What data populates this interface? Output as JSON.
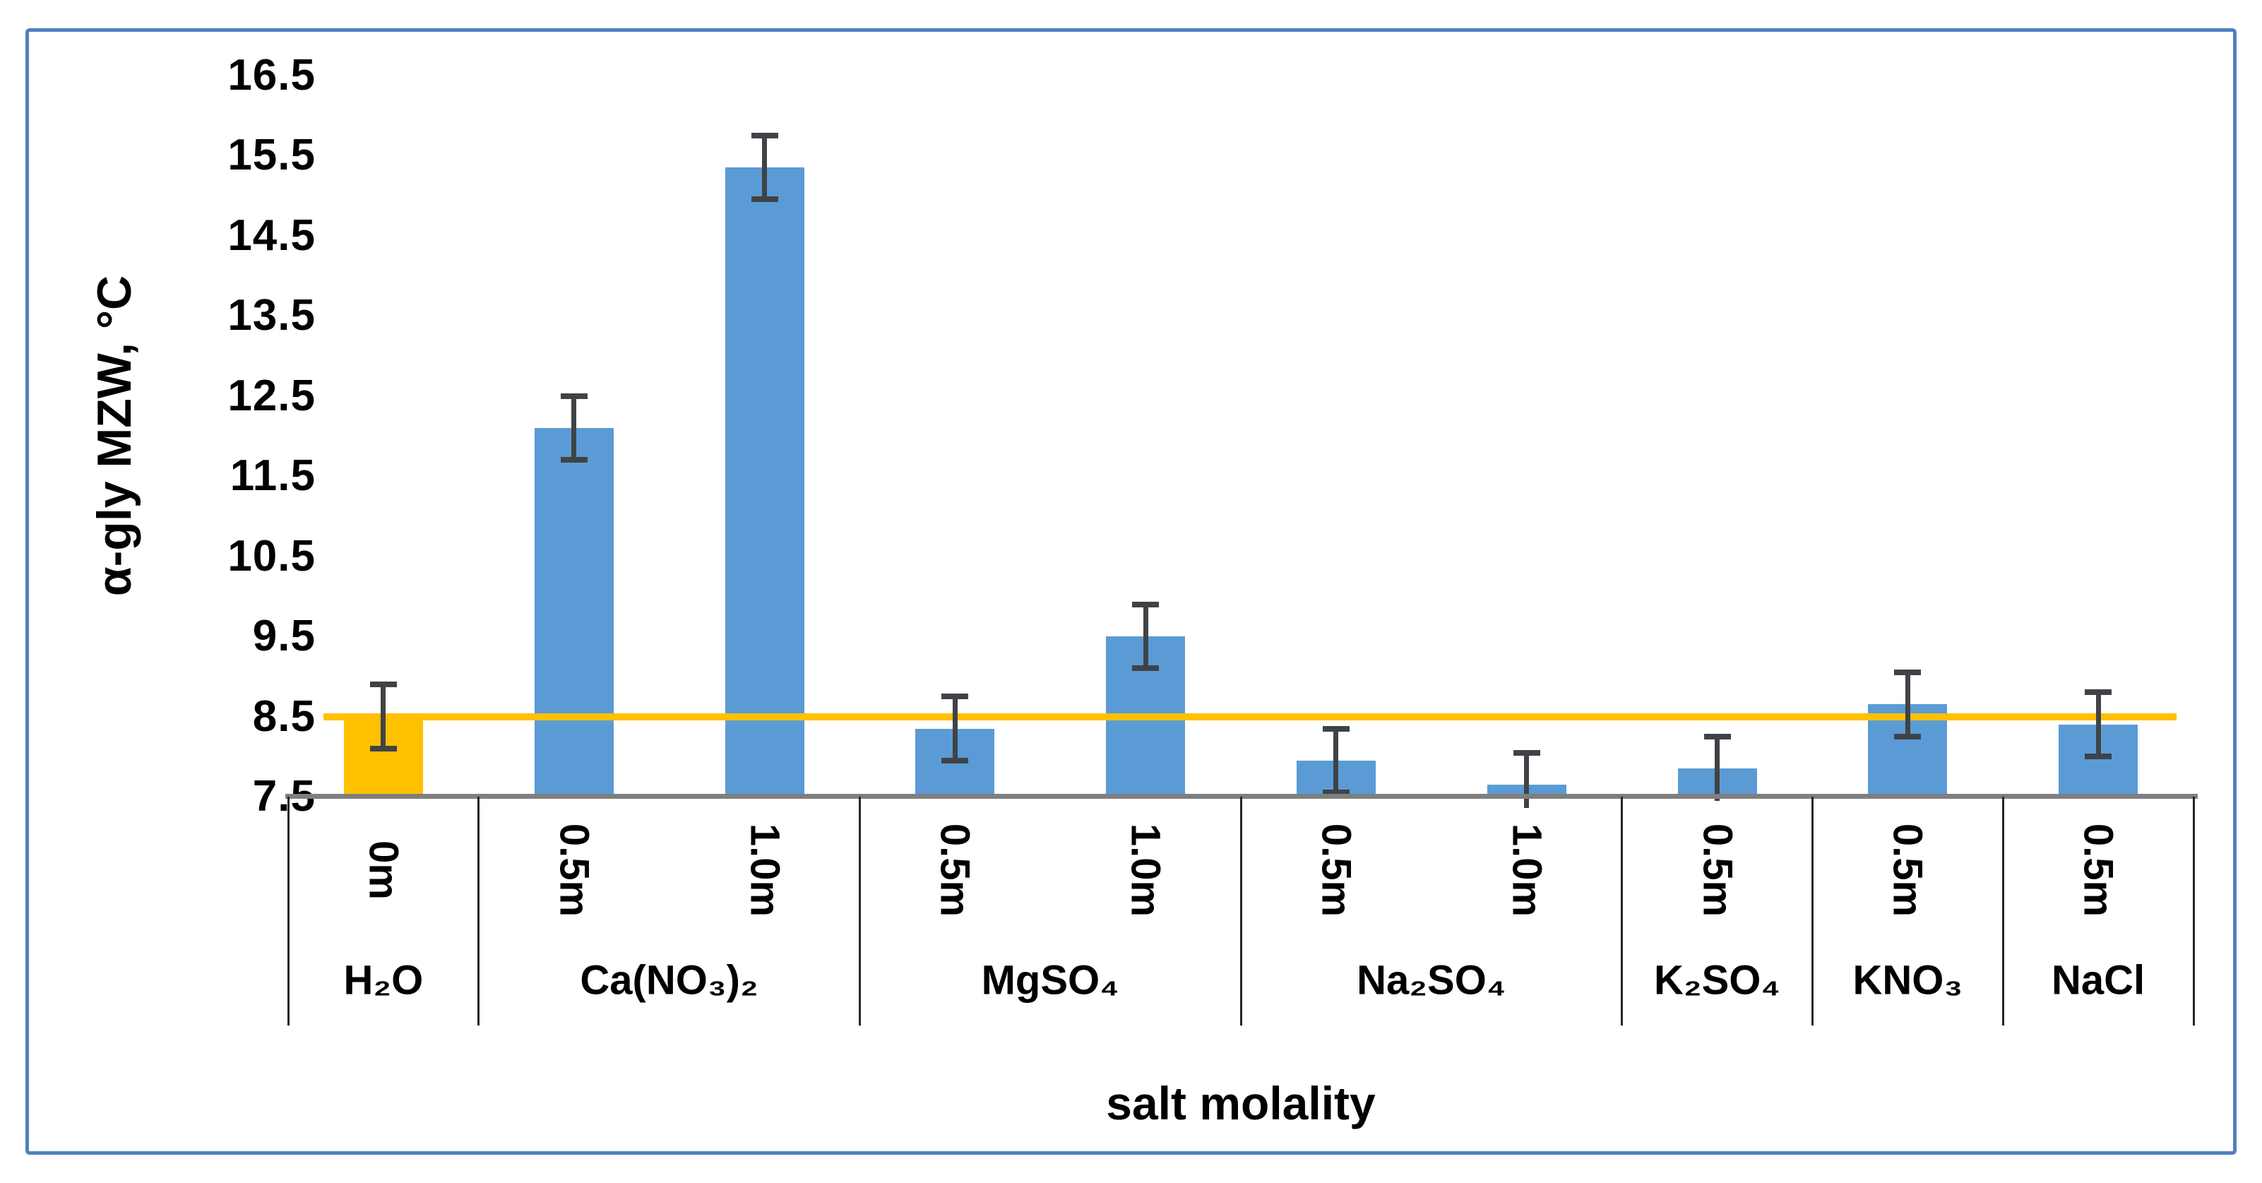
{
  "figure": {
    "background": "#FFFFFF",
    "border_color": "#4E81BD"
  },
  "colors": {
    "bar": "#5B9BD5",
    "highlight": "#FFC000",
    "reference_line": "#FFC000",
    "error_bar": "#3F4347",
    "axis_line": "#7F7F7F",
    "divider": "#262626",
    "text": "#000000"
  },
  "chart_data": {
    "type": "bar",
    "title": "",
    "ylabel": "α-gly MZW, °C",
    "xlabel": "salt molality",
    "ylim": [
      7.5,
      16.5
    ],
    "ytick_step": 1.0,
    "yticks": [
      7.5,
      8.5,
      9.5,
      10.5,
      11.5,
      12.5,
      13.5,
      14.5,
      15.5,
      16.5
    ],
    "grid": false,
    "legend": null,
    "reference_line": {
      "value": 8.5,
      "color": "#FFC000",
      "meaning": "water control level"
    },
    "error_bars": "plus-minus, capped",
    "groups": [
      {
        "label": "H₂O",
        "bars": [
          {
            "molality": "0m",
            "value": 8.5,
            "error": 0.4,
            "color": "#FFC000"
          }
        ]
      },
      {
        "label": "Ca(NO₃)₂",
        "bars": [
          {
            "molality": "0.5m",
            "value": 12.1,
            "error": 0.4,
            "color": "#5B9BD5"
          },
          {
            "molality": "1.0m",
            "value": 15.35,
            "error": 0.4,
            "color": "#5B9BD5"
          }
        ]
      },
      {
        "label": "MgSO₄",
        "bars": [
          {
            "molality": "0.5m",
            "value": 8.35,
            "error": 0.4,
            "color": "#5B9BD5"
          },
          {
            "molality": "1.0m",
            "value": 9.5,
            "error": 0.4,
            "color": "#5B9BD5"
          }
        ]
      },
      {
        "label": "Na₂SO₄",
        "bars": [
          {
            "molality": "0.5m",
            "value": 7.95,
            "error": 0.4,
            "color": "#5B9BD5"
          },
          {
            "molality": "1.0m",
            "value": 7.65,
            "error": 0.4,
            "color": "#5B9BD5"
          }
        ]
      },
      {
        "label": "K₂SO₄",
        "bars": [
          {
            "molality": "0.5m",
            "value": 7.85,
            "error": 0.4,
            "color": "#5B9BD5"
          }
        ]
      },
      {
        "label": "KNO₃",
        "bars": [
          {
            "molality": "0.5m",
            "value": 8.65,
            "error": 0.4,
            "color": "#5B9BD5"
          }
        ]
      },
      {
        "label": "NaCl",
        "bars": [
          {
            "molality": "0.5m",
            "value": 8.4,
            "error": 0.4,
            "color": "#5B9BD5"
          }
        ]
      }
    ]
  }
}
